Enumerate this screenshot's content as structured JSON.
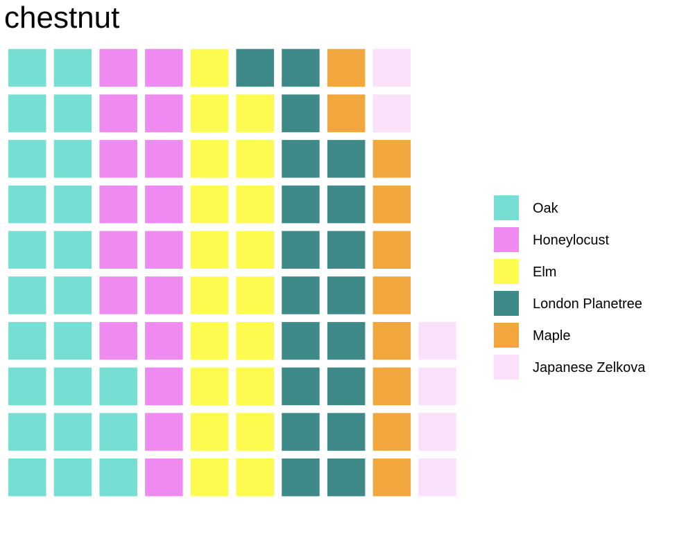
{
  "chart_data": {
    "type": "waffle",
    "title": "chestnut",
    "cell_fill_order": "column-major, bottom-to-top, left-to-right",
    "series": [
      {
        "name": "Oak",
        "value": 23,
        "color": "#76DED2"
      },
      {
        "name": "Honeylocust",
        "value": 17,
        "color": "#EE8AF0"
      },
      {
        "name": "Elm",
        "value": 19,
        "color": "#FEFB50"
      },
      {
        "name": "London Planetree",
        "value": 19,
        "color": "#3D8A88"
      },
      {
        "name": "Maple",
        "value": 10,
        "color": "#F2A73E"
      },
      {
        "name": "Japanese Zelkova",
        "value": 6,
        "color": "#F9E1F9"
      }
    ],
    "legend_position": "right"
  }
}
